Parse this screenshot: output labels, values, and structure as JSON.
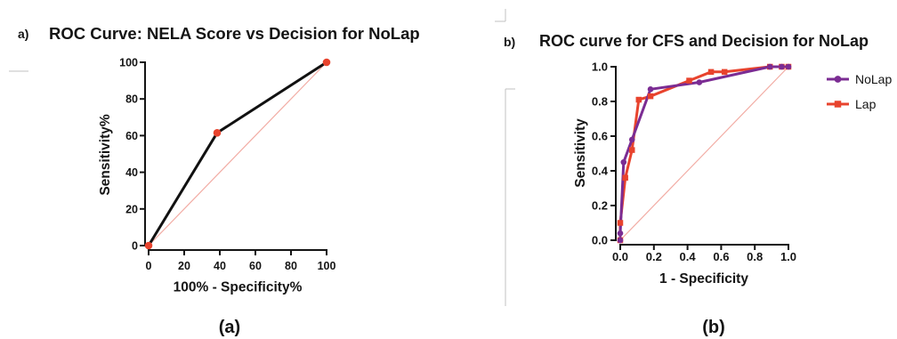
{
  "panels": {
    "a": {
      "tag": "a)",
      "caption": "(a)"
    },
    "b": {
      "tag": "b)",
      "caption": "(b)"
    }
  },
  "chart_data": [
    {
      "type": "line",
      "title": "ROC Curve: NELA Score vs Decision for NoLap",
      "xlabel": "100% - Specificity%",
      "ylabel": "Sensitivity%",
      "xlim": [
        0,
        100
      ],
      "ylim": [
        0,
        100
      ],
      "xticks": [
        "0",
        "20",
        "40",
        "60",
        "80",
        "100"
      ],
      "yticks": [
        "0",
        "20",
        "40",
        "60",
        "80",
        "100"
      ],
      "grid": false,
      "legend": false,
      "reference_line": {
        "x": [
          0,
          100
        ],
        "y": [
          0,
          100
        ],
        "color": "#F2ACA4"
      },
      "series": [
        {
          "x": [
            0,
            38.5,
            100
          ],
          "y": [
            0,
            61.5,
            100
          ],
          "color": "#111111",
          "marker_color": "#E8432D",
          "marker": "circle"
        }
      ]
    },
    {
      "type": "line",
      "title": "ROC curve for CFS and Decision for NoLap",
      "xlabel": "1 - Specificity",
      "ylabel": "Sensitivity",
      "xlim": [
        0,
        1
      ],
      "ylim": [
        0,
        1
      ],
      "xticks": [
        "0.0",
        "0.2",
        "0.4",
        "0.6",
        "0.8",
        "1.0"
      ],
      "yticks": [
        "0.0",
        "0.2",
        "0.4",
        "0.6",
        "0.8",
        "1.0"
      ],
      "grid": false,
      "legend": "right",
      "reference_line": {
        "x": [
          0,
          1
        ],
        "y": [
          0,
          1
        ],
        "color": "#F2ACA4"
      },
      "series": [
        {
          "name": "NoLap",
          "color": "#7B2C93",
          "marker": "circle",
          "x": [
            0,
            0,
            0.02,
            0.07,
            0.18,
            0.47,
            0.89,
            0.96,
            1.0
          ],
          "y": [
            0,
            0.04,
            0.45,
            0.58,
            0.87,
            0.91,
            1.0,
            1.0,
            1.0
          ]
        },
        {
          "name": "Lap",
          "color": "#E8432D",
          "marker": "square",
          "x": [
            0,
            0,
            0.03,
            0.07,
            0.11,
            0.18,
            0.41,
            0.54,
            0.62,
            0.89,
            0.96,
            1.0
          ],
          "y": [
            0,
            0.1,
            0.36,
            0.52,
            0.81,
            0.83,
            0.92,
            0.97,
            0.97,
            1.0,
            1.0,
            1.0
          ]
        }
      ]
    }
  ]
}
